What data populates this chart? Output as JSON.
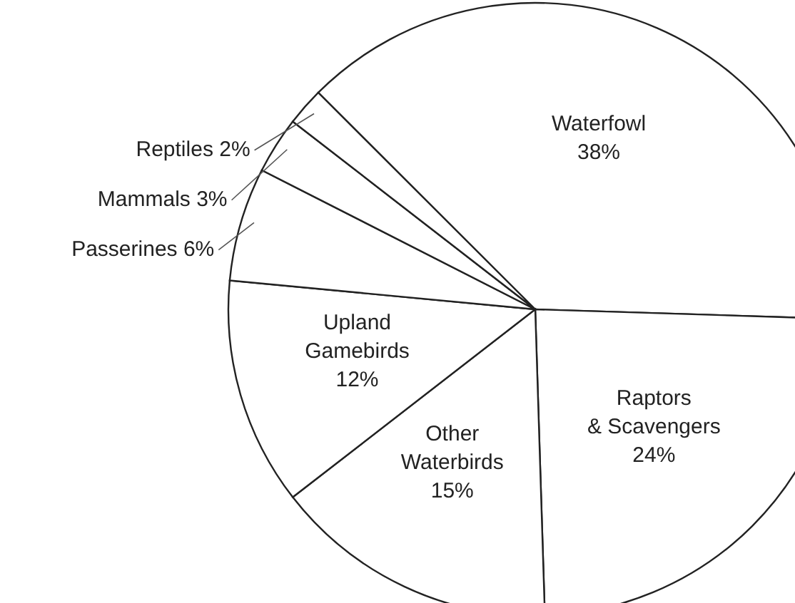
{
  "chart_data": {
    "type": "pie",
    "categories": [
      "Waterfowl",
      "Raptors & Scavengers",
      "Other Waterbirds",
      "Upland Gamebirds",
      "Passerines",
      "Mammals",
      "Reptiles"
    ],
    "values": [
      38,
      24,
      15,
      12,
      6,
      3,
      2
    ],
    "colors": [
      "#ffffff",
      "#ffffff",
      "#ffffff",
      "#ffffff",
      "#ffffff",
      "#ffffff",
      "#ffffff"
    ],
    "value_labels": [
      "38%",
      "24%",
      "15%",
      "12%",
      "6%",
      "3%",
      "2%"
    ],
    "legend": false
  }
}
